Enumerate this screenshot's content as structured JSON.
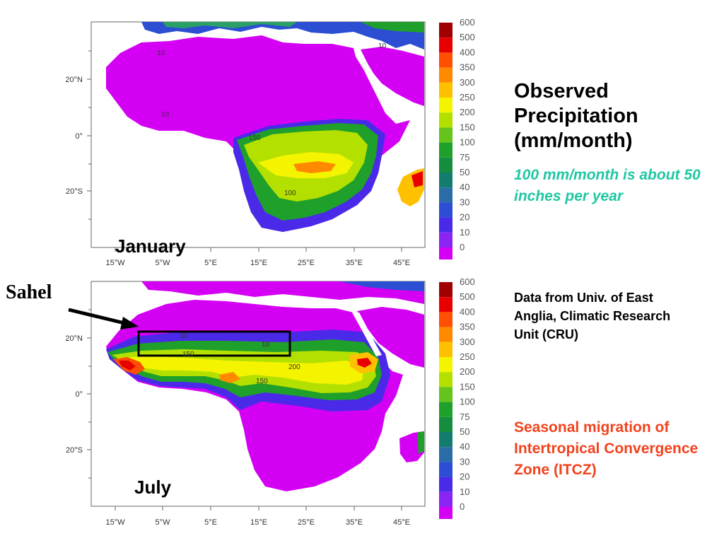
{
  "title": "Observed Precipitation (mm/month)",
  "note": "100 mm/month is about 50 inches per year",
  "source": "Data from Univ. of East Anglia, Climatic Research Unit (CRU)",
  "season_note": "Seasonal migration of Intertropical Convergence Zone (ITCZ)",
  "annotation": {
    "label": "Sahel"
  },
  "legend": {
    "levels": [
      "600",
      "500",
      "400",
      "350",
      "300",
      "250",
      "200",
      "150",
      "100",
      "75",
      "50",
      "40",
      "30",
      "20",
      "10",
      "0"
    ],
    "colors": [
      "#a00000",
      "#e80000",
      "#ff4f00",
      "#ff8a00",
      "#ffc000",
      "#f4f400",
      "#b4e000",
      "#64c41c",
      "#1fa02a",
      "#168c3e",
      "#147c6e",
      "#2a6ca8",
      "#2c4ed2",
      "#4a2ae8",
      "#8a24f2",
      "#d400f4"
    ]
  },
  "maps": [
    {
      "label": "January",
      "y_ticks": [
        "20°N",
        "0°",
        "20°S"
      ],
      "x_ticks": [
        "15°W",
        "5°W",
        "5°E",
        "15°E",
        "25°E",
        "35°E",
        "45°E"
      ],
      "contour_labels": [
        "10",
        "10",
        "10",
        "150",
        "100"
      ]
    },
    {
      "label": "July",
      "y_ticks": [
        "20°N",
        "0°",
        "20°S"
      ],
      "x_ticks": [
        "15°W",
        "5°W",
        "5°E",
        "15°E",
        "25°E",
        "35°E",
        "45°E"
      ],
      "contour_labels": [
        "10",
        "10",
        "150",
        "200",
        "150"
      ]
    }
  ]
}
